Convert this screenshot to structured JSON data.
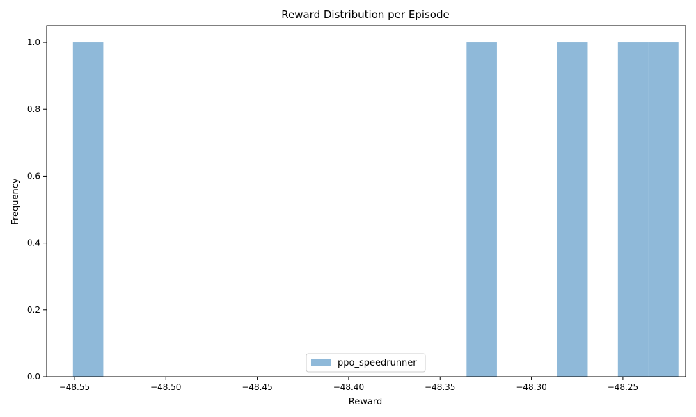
{
  "chart_data": {
    "type": "bar",
    "title": "Reward Distribution per Episode",
    "xlabel": "Reward",
    "ylabel": "Frequency",
    "xlim": [
      -48.5652,
      -48.2157
    ],
    "ylim": [
      0,
      1.05
    ],
    "xticks": [
      -48.55,
      -48.5,
      -48.45,
      -48.4,
      -48.35,
      -48.3,
      -48.25
    ],
    "xtick_labels": [
      "−48.55",
      "−48.50",
      "−48.45",
      "−48.40",
      "−48.35",
      "−48.30",
      "−48.25"
    ],
    "yticks": [
      0.0,
      0.2,
      0.4,
      0.6,
      0.8,
      1.0
    ],
    "ytick_labels": [
      "0.0",
      "0.2",
      "0.4",
      "0.6",
      "0.8",
      "1.0"
    ],
    "legend_position": "bottom-center",
    "grid": false,
    "series": [
      {
        "name": "ppo_speedrunner",
        "color": "#8fb9d9",
        "bins": [
          {
            "x0": -48.5508,
            "x1": -48.5342,
            "value": 1
          },
          {
            "x0": -48.3355,
            "x1": -48.3189,
            "value": 1
          },
          {
            "x0": -48.2858,
            "x1": -48.2692,
            "value": 1
          },
          {
            "x0": -48.2527,
            "x1": -48.2361,
            "value": 1
          },
          {
            "x0": -48.2361,
            "x1": -48.2196,
            "value": 1
          }
        ]
      }
    ]
  }
}
